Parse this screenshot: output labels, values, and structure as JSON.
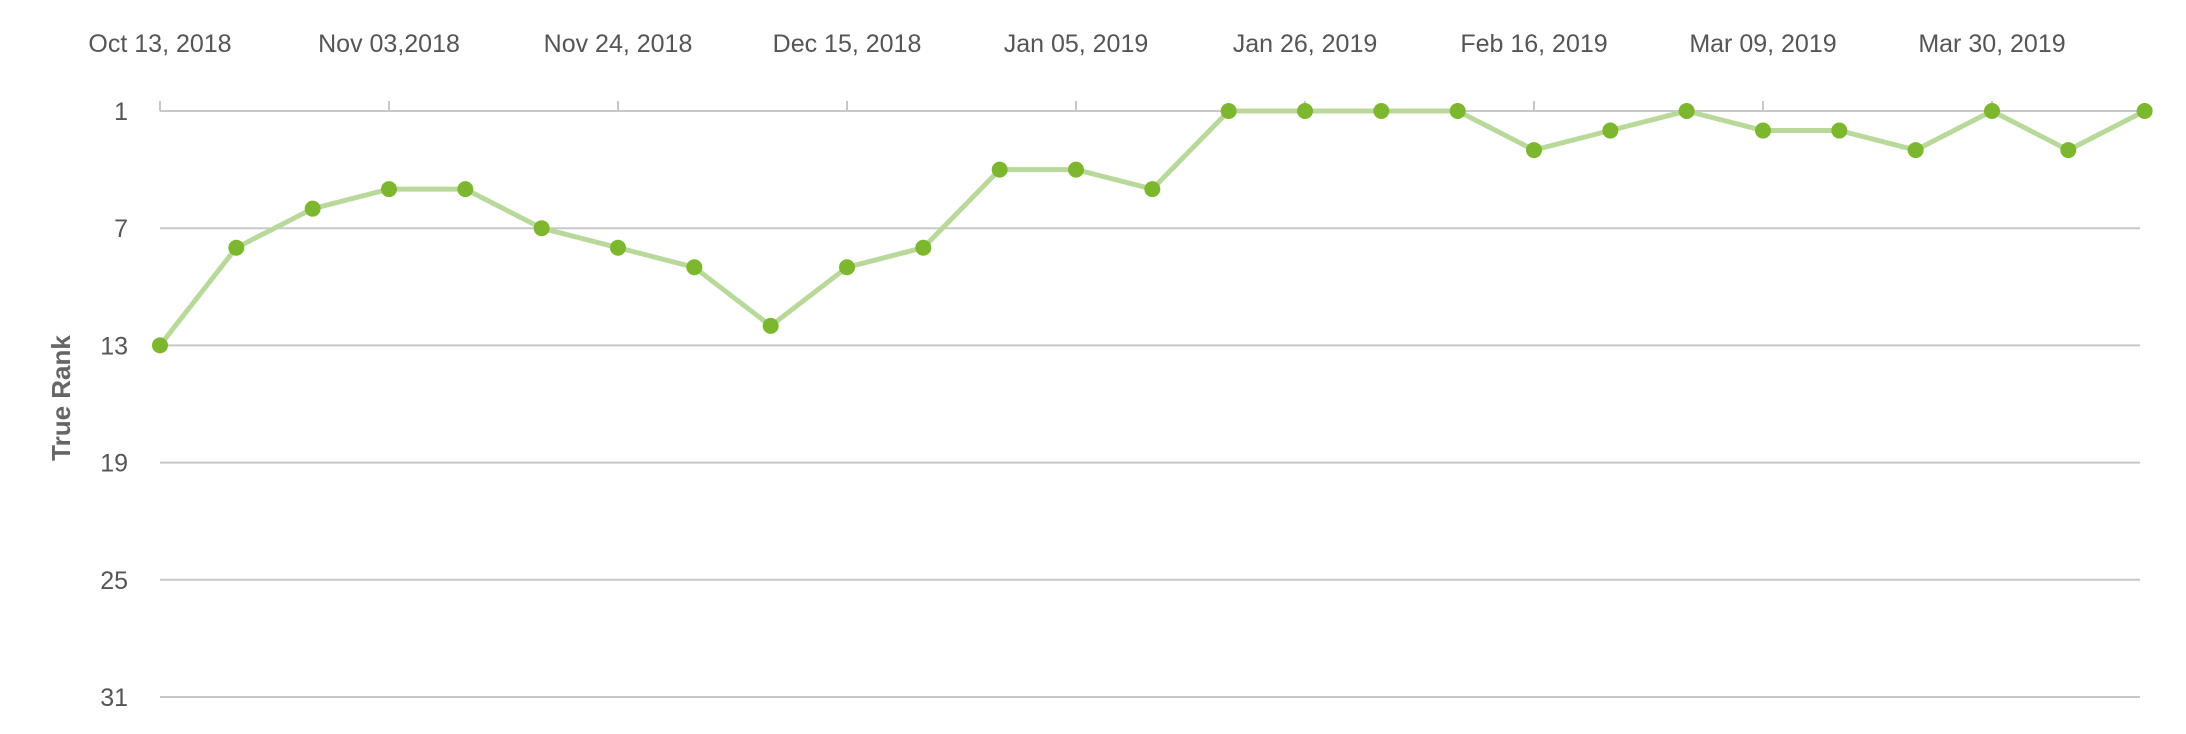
{
  "chart_data": {
    "type": "line",
    "title": "",
    "xlabel": "",
    "ylabel": "True Rank",
    "y_reversed": true,
    "ylim": [
      1,
      31
    ],
    "y_ticks": [
      1,
      7,
      13,
      19,
      25,
      31
    ],
    "x_tick_labels": [
      "Oct 13, 2018",
      "Nov 03,2018",
      "Nov 24, 2018",
      "Dec 15, 2018",
      "Jan 05, 2019",
      "Jan 26, 2019",
      "Feb 16, 2019",
      "Mar 09, 2019",
      "Mar 30, 2019"
    ],
    "grid": true,
    "legend": "none",
    "colors": {
      "line": "#b9d99b",
      "point": "#7cb72d",
      "grid": "#c8c8c8",
      "text": "#555555"
    },
    "series": [
      {
        "x": [
          "2018-10-13",
          "2018-10-20",
          "2018-10-27",
          "2018-11-03",
          "2018-11-10",
          "2018-11-17",
          "2018-11-24",
          "2018-12-01",
          "2018-12-08",
          "2018-12-15",
          "2018-12-22",
          "2018-12-29",
          "2019-01-05",
          "2019-01-12",
          "2019-01-19",
          "2019-01-26",
          "2019-02-02",
          "2019-02-09",
          "2019-02-16",
          "2019-02-23",
          "2019-03-02",
          "2019-03-09",
          "2019-03-16",
          "2019-03-23",
          "2019-03-30",
          "2019-04-06",
          "2019-04-13"
        ],
        "values": [
          13,
          8,
          6,
          5,
          5,
          7,
          8,
          9,
          12,
          9,
          8,
          4,
          4,
          5,
          1,
          1,
          1,
          1,
          3,
          2,
          1,
          2,
          2,
          3,
          1,
          3,
          1
        ]
      }
    ]
  }
}
